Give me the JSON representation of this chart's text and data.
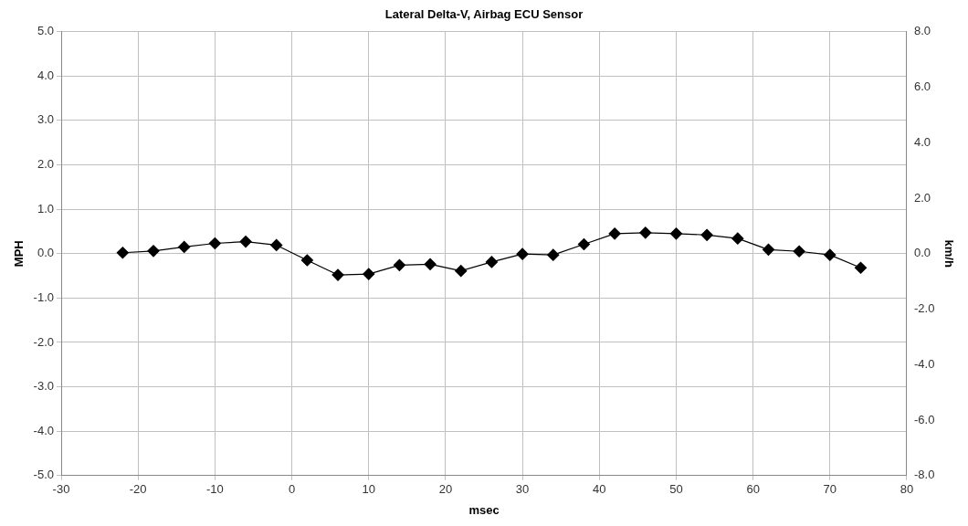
{
  "chart_data": {
    "type": "line",
    "title": "Lateral Delta-V, Airbag ECU Sensor",
    "xlabel": "msec",
    "ylabel": "MPH",
    "y2label": "km/h",
    "x": [
      -22,
      -18,
      -14,
      -10,
      -6,
      -2,
      2,
      6,
      10,
      14,
      18,
      22,
      26,
      30,
      34,
      38,
      42,
      46,
      50,
      54,
      58,
      62,
      66,
      70,
      74
    ],
    "series": [
      {
        "color": "#000000",
        "values": [
          0.02,
          0.06,
          0.15,
          0.23,
          0.27,
          0.19,
          -0.15,
          -0.48,
          -0.46,
          -0.26,
          -0.24,
          -0.39,
          -0.19,
          -0.01,
          -0.03,
          0.21,
          0.45,
          0.47,
          0.45,
          0.42,
          0.34,
          0.09,
          0.05,
          -0.03,
          -0.32
        ]
      }
    ],
    "xlim": [
      -30,
      80
    ],
    "xticks": [
      -30,
      -20,
      -10,
      0,
      10,
      20,
      30,
      40,
      50,
      60,
      70,
      80
    ],
    "ylim": [
      -5,
      5
    ],
    "yticks": [
      {
        "value": -5,
        "label": "-5.0"
      },
      {
        "value": -4,
        "label": "-4.0"
      },
      {
        "value": -3,
        "label": "-3.0"
      },
      {
        "value": -2,
        "label": "-2.0"
      },
      {
        "value": -1,
        "label": "-1.0"
      },
      {
        "value": 0,
        "label": "0.0"
      },
      {
        "value": 1,
        "label": "1.0"
      },
      {
        "value": 2,
        "label": "2.0"
      },
      {
        "value": 3,
        "label": "3.0"
      },
      {
        "value": 4,
        "label": "4.0"
      },
      {
        "value": 5,
        "label": "5.0"
      }
    ],
    "y2lim": [
      -8,
      8
    ],
    "y2ticks": [
      {
        "value": -8,
        "label": "-8.0"
      },
      {
        "value": -6,
        "label": "-6.0"
      },
      {
        "value": -4,
        "label": "-4.0"
      },
      {
        "value": -2,
        "label": "-2.0"
      },
      {
        "value": 0,
        "label": "0.0"
      },
      {
        "value": 2,
        "label": "2.0"
      },
      {
        "value": 4,
        "label": "4.0"
      },
      {
        "value": 6,
        "label": "6.0"
      },
      {
        "value": 8,
        "label": "8.0"
      }
    ],
    "grid": true,
    "legend": false,
    "marker": "diamond",
    "line_style": "solid"
  }
}
